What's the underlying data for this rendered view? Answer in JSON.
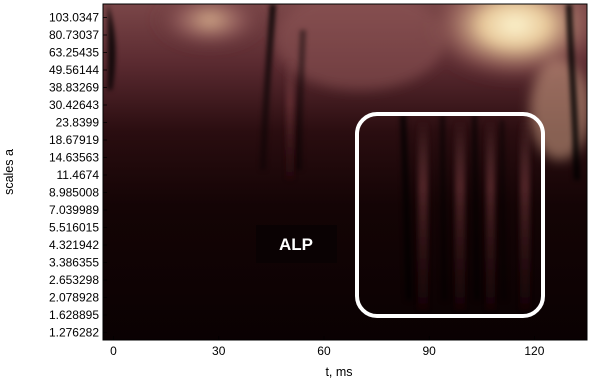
{
  "chart_data": {
    "type": "heatmap",
    "xlabel": "t, ms",
    "ylabel": "scales a",
    "xlim": [
      -3,
      135
    ],
    "x_ticks": [
      0,
      30,
      60,
      90,
      120
    ],
    "y_scale": "log",
    "y_ticks": [
      "103.0347",
      "80.73037",
      "63.25435",
      "49.56144",
      "38.83269",
      "30.42643",
      "23.8399",
      "18.67919",
      "14.63563",
      "11.4674",
      "8.985008",
      "7.039989",
      "5.516015",
      "4.321942",
      "3.386355",
      "2.653298",
      "2.078928",
      "1.628895",
      "1.276282"
    ],
    "colormap": [
      "#000000",
      "#3a1418",
      "#6e3a3e",
      "#a87068",
      "#d9b48a",
      "#fbf2c8"
    ],
    "grid": false,
    "annotations": [
      {
        "text": "ALP",
        "x": 30,
        "y": 4.2,
        "type": "label"
      },
      {
        "type": "rounded-rectangle",
        "x": [
          76,
          124
        ],
        "y": [
          1.5,
          24
        ],
        "color": "#ffffff"
      }
    ]
  }
}
